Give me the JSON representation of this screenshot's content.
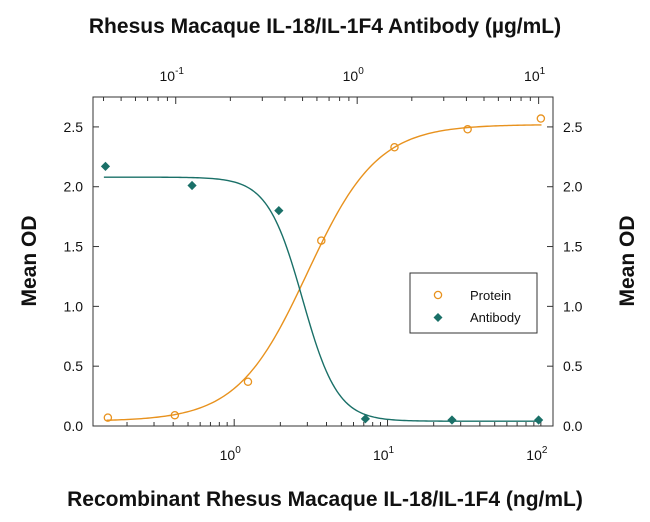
{
  "chart_data": {
    "type": "scatter",
    "title": "Rhesus Macaque IL-18/IL-1F4 Antibody (µg/mL)",
    "xlabel": "Recombinant Rhesus Macaque IL-18/IL-1F4 (ng/mL)",
    "ylabel_left": "Mean OD",
    "ylabel_right": "Mean OD",
    "x_scale": "log",
    "x_bottom_range": [
      0.12,
      120
    ],
    "x_top_range": [
      0.035,
      12
    ],
    "ylim": [
      0,
      2.75
    ],
    "y_ticks": [
      "0.0",
      "0.5",
      "1.0",
      "1.5",
      "2.0",
      "2.5"
    ],
    "x_bottom_ticks": [
      {
        "value": 1,
        "base": "10",
        "exp": "0"
      },
      {
        "value": 10,
        "base": "10",
        "exp": "1"
      },
      {
        "value": 100,
        "base": "10",
        "exp": "2"
      }
    ],
    "x_top_ticks": [
      {
        "value": 0.1,
        "base": "10",
        "exp": "-1"
      },
      {
        "value": 1,
        "base": "10",
        "exp": "0"
      },
      {
        "value": 10,
        "base": "10",
        "exp": "1"
      }
    ],
    "legend": {
      "position": "center-right",
      "entries": [
        "Protein",
        "Antibody"
      ]
    },
    "grid": false,
    "series": [
      {
        "name": "Protein",
        "axis": "bottom",
        "marker": "open-circle",
        "color": "#e8921e",
        "x": [
          0.15,
          0.41,
          1.23,
          3.7,
          11.1,
          33.3,
          100
        ],
        "y": [
          0.07,
          0.09,
          0.37,
          1.55,
          2.33,
          2.48,
          2.57
        ],
        "fit": {
          "bottom": 0.04,
          "top": 2.52,
          "ec50": 3.0,
          "hill": 1.9
        }
      },
      {
        "name": "Antibody",
        "axis": "top",
        "marker": "filled-diamond",
        "color": "#1a7068",
        "x": [
          0.041,
          0.123,
          0.37,
          1.11,
          3.33,
          10
        ],
        "y": [
          2.17,
          2.01,
          1.8,
          0.06,
          0.05,
          0.05
        ],
        "fit": {
          "top": 2.08,
          "bottom": 0.04,
          "ic50": 0.5,
          "hill": 4.5
        }
      }
    ]
  }
}
